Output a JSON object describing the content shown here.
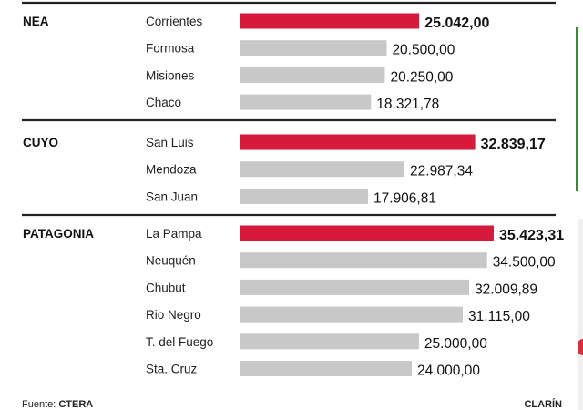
{
  "chart_data": {
    "type": "bar",
    "title": "",
    "xlabel": "",
    "ylabel": "",
    "xlim": [
      0,
      40000
    ],
    "grid": false,
    "orientation": "horizontal",
    "highlight_color": "#d61a3c",
    "bar_color": "#c8c8c8",
    "groups": [
      {
        "region": "NEA",
        "rows": [
          {
            "province": "Corrientes",
            "value": 25042.0,
            "label": "25.042,00",
            "highlight": true
          },
          {
            "province": "Formosa",
            "value": 20500.0,
            "label": "20.500,00",
            "highlight": false
          },
          {
            "province": "Misiones",
            "value": 20250.0,
            "label": "20.250,00",
            "highlight": false
          },
          {
            "province": "Chaco",
            "value": 18321.78,
            "label": "18.321,78",
            "highlight": false
          }
        ]
      },
      {
        "region": "CUYO",
        "rows": [
          {
            "province": "San Luis",
            "value": 32839.17,
            "label": "32.839,17",
            "highlight": true
          },
          {
            "province": "Mendoza",
            "value": 22987.34,
            "label": "22.987,34",
            "highlight": false
          },
          {
            "province": "San Juan",
            "value": 17906.81,
            "label": "17.906,81",
            "highlight": false
          }
        ]
      },
      {
        "region": "PATAGONIA",
        "rows": [
          {
            "province": "La Pampa",
            "value": 35423.31,
            "label": "35.423,31",
            "highlight": true
          },
          {
            "province": "Neuquén",
            "value": 34500.0,
            "label": "34.500,00",
            "highlight": false
          },
          {
            "province": "Chubut",
            "value": 32009.89,
            "label": "32.009,89",
            "highlight": false
          },
          {
            "province": "Rio Negro",
            "value": 31115.0,
            "label": "31.115,00",
            "highlight": false
          },
          {
            "province": "T. del Fuego",
            "value": 25000.0,
            "label": "25.000,00",
            "highlight": false
          },
          {
            "province": "Sta. Cruz",
            "value": 24000.0,
            "label": "24.000,00",
            "highlight": false
          }
        ]
      }
    ]
  },
  "footer": {
    "source_prefix": "Fuente: ",
    "source_name": "CTERA",
    "credit": "CLARÍN"
  }
}
